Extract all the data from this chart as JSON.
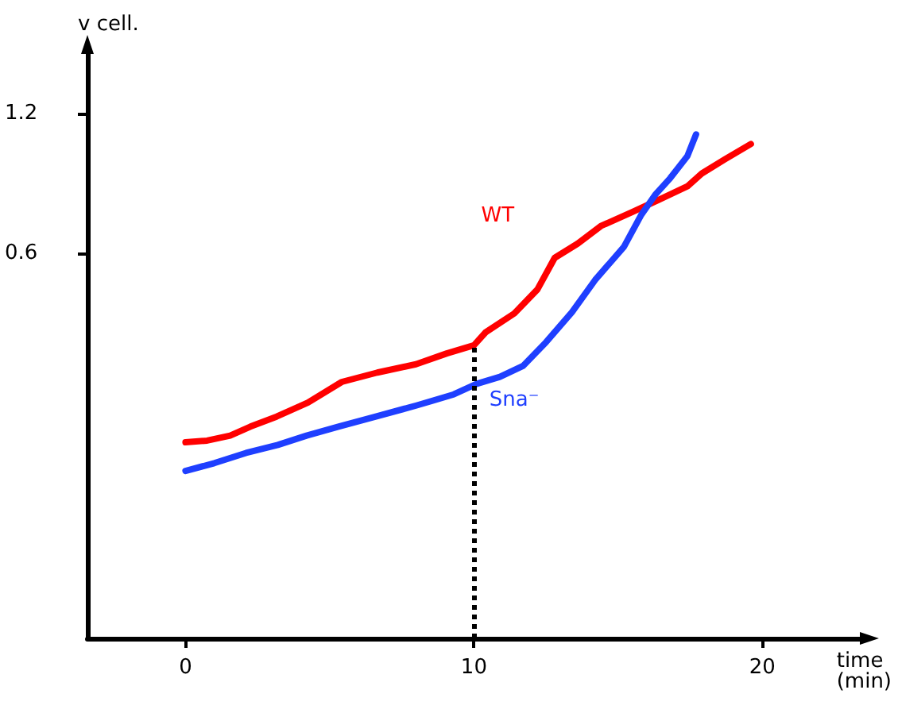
{
  "chart_data": {
    "type": "line",
    "xlabel": "time (min)",
    "ylabel": "v cell.",
    "log": "y",
    "xlim": [
      -3.4,
      23.6
    ],
    "xticks": [
      0,
      10,
      20
    ],
    "ylim": [
      0.089,
      1.66
    ],
    "yticks": [
      0.6,
      1.2
    ],
    "grid": false,
    "legend": false,
    "marker": "none",
    "line_style": "solid",
    "series": [
      {
        "name": "WT",
        "color": "#ff0000",
        "x": [
          0,
          0.75,
          1.55,
          2.25,
          3.16,
          4.24,
          5.42,
          6.65,
          7.99,
          9.06,
          10,
          10.4,
          11.4,
          12.2,
          12.8,
          13.6,
          14.4,
          15.5,
          16.6,
          17.4,
          17.9,
          18.7,
          19.6
        ],
        "values": [
          0.235,
          0.237,
          0.243,
          0.254,
          0.267,
          0.286,
          0.317,
          0.332,
          0.346,
          0.365,
          0.38,
          0.405,
          0.445,
          0.501,
          0.586,
          0.629,
          0.686,
          0.736,
          0.791,
          0.835,
          0.89,
          0.955,
          1.03
        ]
      },
      {
        "name": "Sna⁻",
        "color": "#1f3fff",
        "x": [
          0,
          1.0,
          2.1,
          3.2,
          4.2,
          5.3,
          6.6,
          8.0,
          9.3,
          10.1,
          10.9,
          11.7,
          12.5,
          13.4,
          14.2,
          15.2,
          15.8,
          16.3,
          16.8,
          17.4,
          17.7
        ],
        "values": [
          0.204,
          0.212,
          0.223,
          0.232,
          0.243,
          0.254,
          0.267,
          0.282,
          0.298,
          0.314,
          0.325,
          0.343,
          0.386,
          0.448,
          0.525,
          0.619,
          0.725,
          0.803,
          0.869,
          0.97,
          1.08
        ]
      }
    ],
    "ref_lines": [
      {
        "axis": "x",
        "value": 10,
        "color": "#000000",
        "line_style": "dotted"
      }
    ]
  }
}
